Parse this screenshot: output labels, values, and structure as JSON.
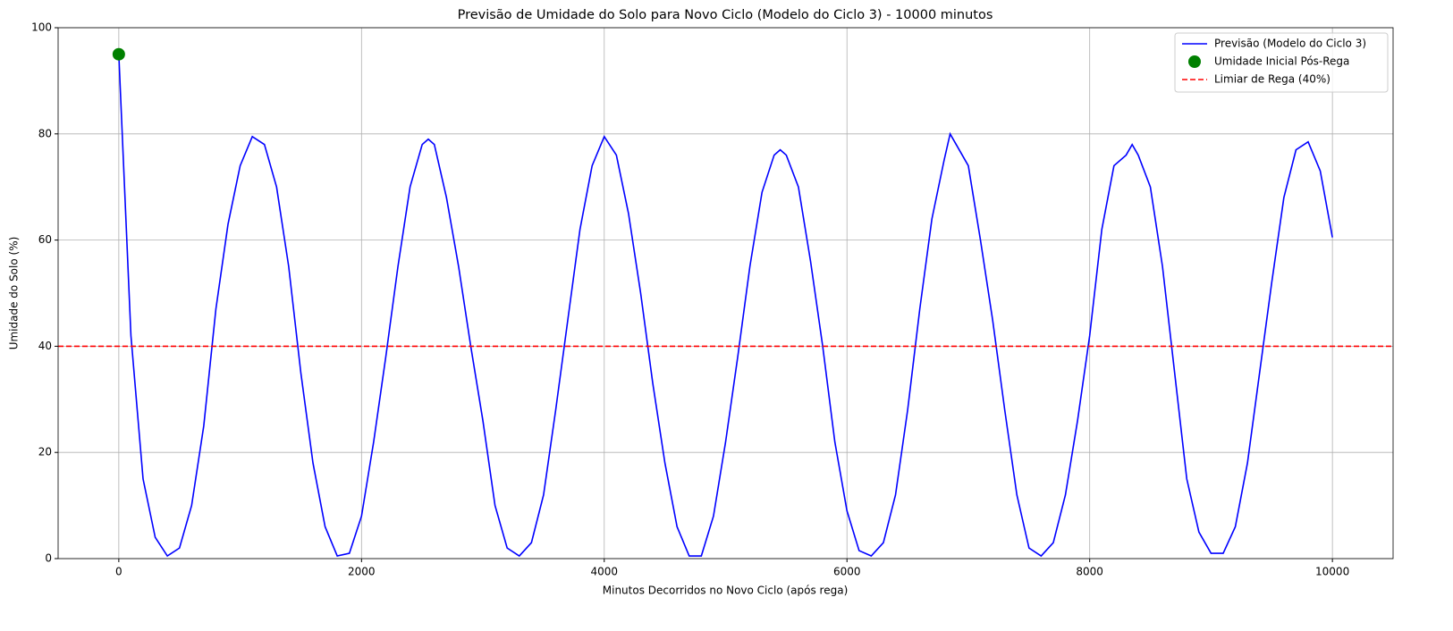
{
  "chart_data": {
    "type": "line",
    "title": "Previsão de Umidade do Solo para Novo Ciclo (Modelo do Ciclo 3) - 10000 minutos",
    "xlabel": "Minutos Decorridos no Novo Ciclo (após rega)",
    "ylabel": "Umidade do Solo (%)",
    "xlim": [
      -500,
      10500
    ],
    "ylim": [
      0,
      100
    ],
    "xticks": [
      0,
      2000,
      4000,
      6000,
      8000,
      10000
    ],
    "yticks": [
      0,
      20,
      40,
      60,
      80,
      100
    ],
    "grid": true,
    "legend": "upper right",
    "series": [
      {
        "name": "Previsão (Modelo do Ciclo 3)",
        "color": "#0000ff",
        "x": [
          0,
          100,
          200,
          300,
          400,
          500,
          600,
          700,
          800,
          900,
          1000,
          1100,
          1200,
          1300,
          1400,
          1500,
          1600,
          1700,
          1800,
          1900,
          2000,
          2100,
          2200,
          2300,
          2400,
          2500,
          2550,
          2600,
          2700,
          2800,
          2900,
          3000,
          3100,
          3200,
          3300,
          3400,
          3500,
          3600,
          3700,
          3800,
          3900,
          4000,
          4100,
          4200,
          4300,
          4400,
          4500,
          4600,
          4700,
          4800,
          4900,
          5000,
          5100,
          5200,
          5300,
          5400,
          5450,
          5500,
          5600,
          5700,
          5800,
          5900,
          6000,
          6100,
          6200,
          6300,
          6400,
          6500,
          6600,
          6700,
          6800,
          6850,
          6900,
          7000,
          7100,
          7200,
          7300,
          7400,
          7500,
          7600,
          7700,
          7800,
          7900,
          8000,
          8100,
          8200,
          8300,
          8350,
          8400,
          8500,
          8600,
          8700,
          8800,
          8900,
          9000,
          9100,
          9200,
          9300,
          9400,
          9500,
          9600,
          9700,
          9800,
          9900,
          10000
        ],
        "values": [
          95,
          42,
          15,
          4,
          0.5,
          2,
          10,
          25,
          47,
          63,
          74,
          79.5,
          78,
          70,
          55,
          35,
          18,
          6,
          0.5,
          1,
          8,
          22,
          38,
          55,
          70,
          78,
          79,
          78,
          68,
          55,
          40,
          26,
          10,
          2,
          0.5,
          3,
          12,
          28,
          45,
          62,
          74,
          79.5,
          76,
          65,
          50,
          33,
          18,
          6,
          0.5,
          0.5,
          8,
          22,
          38,
          55,
          69,
          76,
          77,
          76,
          70,
          56,
          40,
          22,
          9,
          1.5,
          0.5,
          3,
          12,
          28,
          47,
          64,
          75,
          80,
          78,
          74,
          60,
          45,
          28,
          12,
          2,
          0.5,
          3,
          12,
          26,
          42,
          62,
          74,
          76,
          78,
          76,
          70,
          55,
          35,
          15,
          5,
          1,
          1,
          6,
          18,
          35,
          52,
          68,
          77,
          78.5,
          73,
          60.5
        ]
      },
      {
        "type": "scatter",
        "name": "Umidade Inicial Pós-Rega",
        "color": "#008000",
        "x": [
          0
        ],
        "values": [
          95
        ]
      },
      {
        "type": "hline",
        "name": "Limiar de Rega (40%)",
        "color": "#ff0000",
        "value": 40
      }
    ]
  }
}
